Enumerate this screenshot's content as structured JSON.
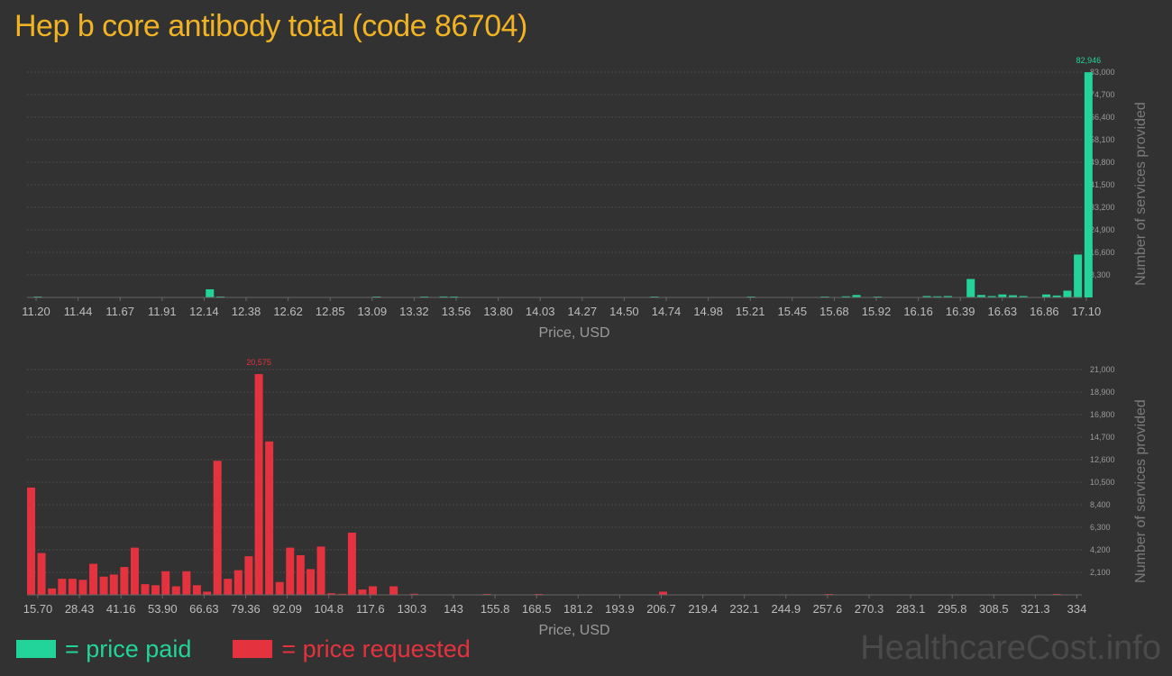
{
  "title": "Hep b core antibody total (code 86704)",
  "brand": "HealthcareCost.info",
  "legend": [
    {
      "label": "= price paid",
      "color": "#22d499"
    },
    {
      "label": "= price requested",
      "color": "#e4323e"
    }
  ],
  "chart_data": [
    {
      "type": "bar",
      "name": "price paid",
      "color": "#22d499",
      "xlabel": "Price, USD",
      "ylabel": "Number of services provided",
      "x_ticks": [
        "11.20",
        "11.44",
        "11.67",
        "11.91",
        "12.14",
        "12.38",
        "12.62",
        "12.85",
        "13.09",
        "13.32",
        "13.56",
        "13.80",
        "14.03",
        "14.27",
        "14.50",
        "14.74",
        "14.98",
        "15.21",
        "15.45",
        "15.68",
        "15.92",
        "16.16",
        "16.39",
        "16.63",
        "16.86",
        "17.10"
      ],
      "y_ticks": [
        "8,300",
        "16,600",
        "24,900",
        "33,200",
        "41,500",
        "49,800",
        "58,100",
        "66,400",
        "74,700",
        "83,000"
      ],
      "ylim": [
        0,
        83000
      ],
      "xlim": [
        11.2,
        17.1
      ],
      "peak_label": "82,946",
      "bars": [
        {
          "x": 11.25,
          "v": 300
        },
        {
          "x": 12.23,
          "v": 3000
        },
        {
          "x": 12.29,
          "v": 300
        },
        {
          "x": 13.18,
          "v": 250
        },
        {
          "x": 13.45,
          "v": 300
        },
        {
          "x": 13.56,
          "v": 350
        },
        {
          "x": 13.62,
          "v": 200
        },
        {
          "x": 14.76,
          "v": 300
        },
        {
          "x": 15.31,
          "v": 300
        },
        {
          "x": 15.73,
          "v": 200
        },
        {
          "x": 15.85,
          "v": 400
        },
        {
          "x": 15.91,
          "v": 900
        },
        {
          "x": 16.03,
          "v": 300
        },
        {
          "x": 16.31,
          "v": 500
        },
        {
          "x": 16.37,
          "v": 400
        },
        {
          "x": 16.43,
          "v": 500
        },
        {
          "x": 16.56,
          "v": 6800
        },
        {
          "x": 16.62,
          "v": 900
        },
        {
          "x": 16.68,
          "v": 500
        },
        {
          "x": 16.74,
          "v": 1100
        },
        {
          "x": 16.8,
          "v": 800
        },
        {
          "x": 16.86,
          "v": 500
        },
        {
          "x": 16.99,
          "v": 1100
        },
        {
          "x": 17.05,
          "v": 700
        },
        {
          "x": 17.11,
          "v": 2500
        },
        {
          "x": 17.17,
          "v": 15800
        },
        {
          "x": 17.23,
          "v": 82946
        }
      ]
    },
    {
      "type": "bar",
      "name": "price requested",
      "color": "#e4323e",
      "xlabel": "Price, USD",
      "ylabel": "Number of services provided",
      "x_ticks": [
        "15.70",
        "28.43",
        "41.16",
        "53.90",
        "66.63",
        "79.36",
        "92.09",
        "104.8",
        "117.6",
        "130.3",
        "143",
        "155.8",
        "168.5",
        "181.2",
        "193.9",
        "206.7",
        "219.4",
        "232.1",
        "244.9",
        "257.6",
        "270.3",
        "283.1",
        "295.8",
        "308.5",
        "321.3",
        "334"
      ],
      "y_ticks": [
        "2,100",
        "4,200",
        "6,300",
        "8,400",
        "10,500",
        "12,600",
        "14,700",
        "16,800",
        "18,900",
        "21,000"
      ],
      "ylim": [
        0,
        21000
      ],
      "xlim": [
        15.7,
        334
      ],
      "peak_label": "20,575",
      "bars": [
        {
          "x": 16.4,
          "v": 10000
        },
        {
          "x": 19.6,
          "v": 3900
        },
        {
          "x": 22.8,
          "v": 600
        },
        {
          "x": 25.9,
          "v": 1500
        },
        {
          "x": 29.1,
          "v": 1500
        },
        {
          "x": 32.3,
          "v": 1400
        },
        {
          "x": 35.5,
          "v": 2900
        },
        {
          "x": 38.7,
          "v": 1700
        },
        {
          "x": 41.8,
          "v": 1900
        },
        {
          "x": 45.0,
          "v": 2600
        },
        {
          "x": 48.2,
          "v": 4400
        },
        {
          "x": 51.4,
          "v": 1000
        },
        {
          "x": 54.6,
          "v": 900
        },
        {
          "x": 57.7,
          "v": 2200
        },
        {
          "x": 60.9,
          "v": 800
        },
        {
          "x": 64.1,
          "v": 2200
        },
        {
          "x": 67.3,
          "v": 900
        },
        {
          "x": 70.4,
          "v": 300
        },
        {
          "x": 73.6,
          "v": 12500
        },
        {
          "x": 76.8,
          "v": 1500
        },
        {
          "x": 80.0,
          "v": 2300
        },
        {
          "x": 83.2,
          "v": 3600
        },
        {
          "x": 86.3,
          "v": 20575
        },
        {
          "x": 89.5,
          "v": 14300
        },
        {
          "x": 92.7,
          "v": 1200
        },
        {
          "x": 95.9,
          "v": 4400
        },
        {
          "x": 99.1,
          "v": 3700
        },
        {
          "x": 102.2,
          "v": 2400
        },
        {
          "x": 105.4,
          "v": 4500
        },
        {
          "x": 108.6,
          "v": 150
        },
        {
          "x": 111.8,
          "v": 100
        },
        {
          "x": 114.9,
          "v": 5800
        },
        {
          "x": 118.1,
          "v": 500
        },
        {
          "x": 121.3,
          "v": 800
        },
        {
          "x": 127.7,
          "v": 800
        },
        {
          "x": 134.0,
          "v": 100
        },
        {
          "x": 156.3,
          "v": 80
        },
        {
          "x": 172.2,
          "v": 80
        },
        {
          "x": 210.4,
          "v": 300
        },
        {
          "x": 261.3,
          "v": 80
        },
        {
          "x": 331.3,
          "v": 80
        }
      ]
    }
  ]
}
